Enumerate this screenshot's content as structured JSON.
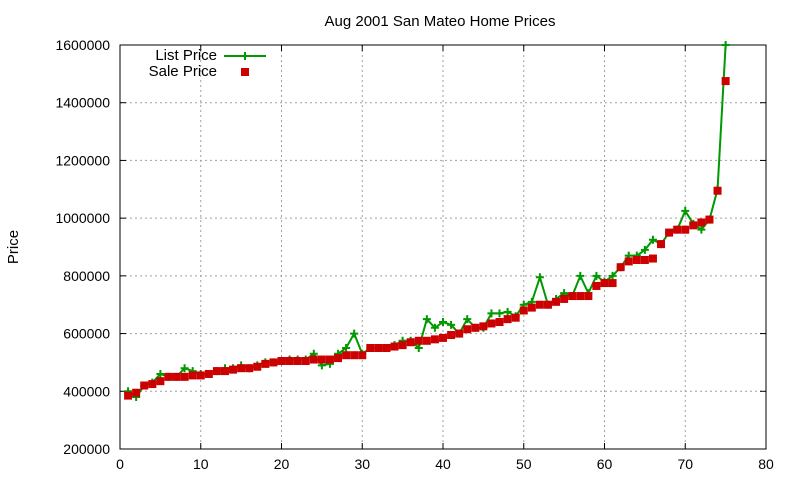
{
  "chart_data": {
    "type": "line",
    "title": "Aug 2001 San Mateo Home Prices",
    "xlabel": "",
    "ylabel": "Price",
    "xlim": [
      0,
      80
    ],
    "ylim": [
      200000,
      1600000
    ],
    "xticks": [
      0,
      10,
      20,
      30,
      40,
      50,
      60,
      70,
      80
    ],
    "yticks": [
      200000,
      400000,
      600000,
      800000,
      1000000,
      1200000,
      1400000,
      1600000
    ],
    "grid": true,
    "legend_position": "top-left",
    "series": [
      {
        "name": "List Price",
        "kind": "line-plus",
        "color": "#009900",
        "x": [
          1,
          2,
          3,
          4,
          5,
          6,
          7,
          8,
          9,
          10,
          11,
          12,
          13,
          14,
          15,
          16,
          17,
          18,
          19,
          20,
          21,
          22,
          23,
          24,
          25,
          26,
          27,
          28,
          29,
          30,
          31,
          32,
          33,
          34,
          35,
          36,
          37,
          38,
          39,
          40,
          41,
          42,
          43,
          44,
          45,
          46,
          47,
          48,
          49,
          50,
          51,
          52,
          53,
          54,
          55,
          56,
          57,
          58,
          59,
          60,
          61,
          62,
          63,
          64,
          65,
          66,
          67,
          68,
          69,
          70,
          71,
          72,
          73,
          74,
          75
        ],
        "y": [
          400000,
          380000,
          420000,
          430000,
          460000,
          450000,
          450000,
          480000,
          470000,
          460000,
          460000,
          470000,
          480000,
          480000,
          490000,
          480000,
          490000,
          500000,
          500000,
          505000,
          510000,
          510000,
          510000,
          530000,
          490000,
          495000,
          530000,
          550000,
          600000,
          530000,
          550000,
          550000,
          550000,
          560000,
          575000,
          575000,
          550000,
          650000,
          620000,
          640000,
          630000,
          600000,
          650000,
          620000,
          620000,
          670000,
          670000,
          675000,
          660000,
          700000,
          710000,
          795000,
          700000,
          720000,
          740000,
          730000,
          800000,
          740000,
          800000,
          780000,
          800000,
          830000,
          870000,
          870000,
          890000,
          925000,
          910000,
          950000,
          960000,
          1025000,
          980000,
          960000,
          995000,
          1100000,
          1600000
        ]
      },
      {
        "name": "Sale Price",
        "kind": "square",
        "color": "#cc0000",
        "x": [
          1,
          2,
          3,
          4,
          5,
          6,
          7,
          8,
          9,
          10,
          11,
          12,
          13,
          14,
          15,
          16,
          17,
          18,
          19,
          20,
          21,
          22,
          23,
          24,
          25,
          26,
          27,
          28,
          29,
          30,
          31,
          32,
          33,
          34,
          35,
          36,
          37,
          38,
          39,
          40,
          41,
          42,
          43,
          44,
          45,
          46,
          47,
          48,
          49,
          50,
          51,
          52,
          53,
          54,
          55,
          56,
          57,
          58,
          59,
          60,
          61,
          62,
          63,
          64,
          65,
          66,
          67,
          68,
          69,
          70,
          71,
          72,
          73,
          74,
          75
        ],
        "y": [
          385000,
          395000,
          420000,
          425000,
          435000,
          450000,
          450000,
          450000,
          455000,
          455000,
          460000,
          470000,
          470000,
          475000,
          480000,
          480000,
          485000,
          495000,
          500000,
          505000,
          505000,
          505000,
          505000,
          510000,
          510000,
          510000,
          515000,
          525000,
          525000,
          525000,
          550000,
          550000,
          550000,
          555000,
          560000,
          570000,
          575000,
          575000,
          580000,
          585000,
          595000,
          600000,
          615000,
          620000,
          625000,
          635000,
          640000,
          650000,
          655000,
          680000,
          690000,
          700000,
          700000,
          710000,
          720000,
          730000,
          730000,
          730000,
          765000,
          775000,
          775000,
          830000,
          850000,
          855000,
          855000,
          860000,
          910000,
          950000,
          960000,
          960000,
          975000,
          985000,
          995000,
          1095000,
          1475000
        ]
      }
    ]
  }
}
